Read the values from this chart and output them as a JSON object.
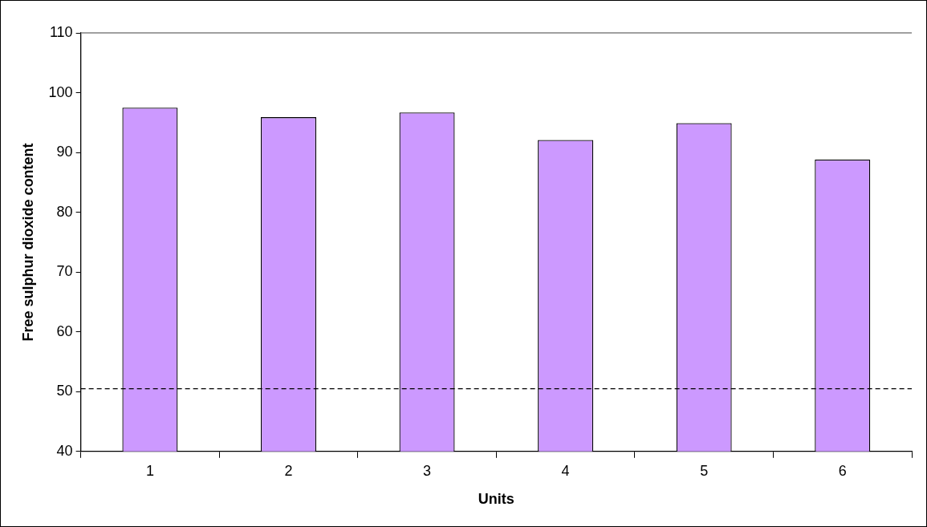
{
  "chart_data": {
    "type": "bar",
    "xlabel": "Units",
    "ylabel": "Free sulphur dioxide content",
    "categories": [
      "1",
      "2",
      "3",
      "4",
      "5",
      "6"
    ],
    "series": [
      {
        "color": "#cc99ff",
        "values": [
          97.5,
          95.9,
          96.7,
          92.1,
          94.9,
          88.8
        ]
      }
    ],
    "ylim": [
      40,
      110
    ],
    "yticks": [
      40,
      50,
      60,
      70,
      80,
      90,
      100,
      110
    ],
    "grid": false,
    "legend": false,
    "ref_lines": [
      {
        "axis": "y",
        "value": 50.5,
        "color": "#000000",
        "line_style": "dashed"
      }
    ]
  }
}
